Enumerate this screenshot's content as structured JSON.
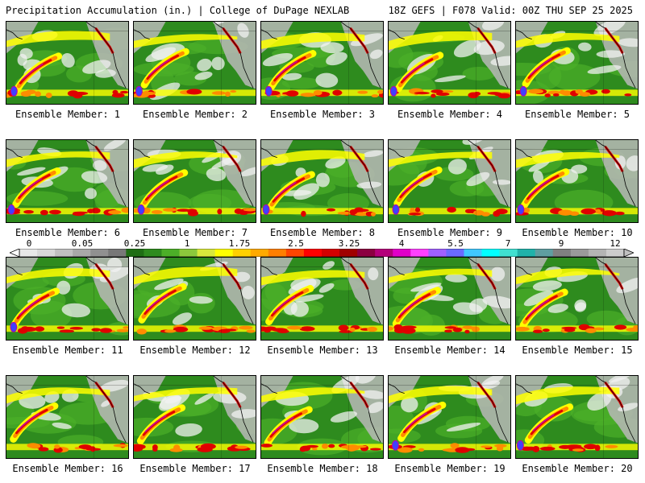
{
  "header": {
    "title": "Precipitation Accumulation (in.) | College of DuPage NEXLAB",
    "run_info": "18Z GEFS | F078 Valid: 00Z THU SEP 25 2025"
  },
  "members": [
    {
      "label": "Ensemble Member: 1"
    },
    {
      "label": "Ensemble Member: 2"
    },
    {
      "label": "Ensemble Member: 3"
    },
    {
      "label": "Ensemble Member: 4"
    },
    {
      "label": "Ensemble Member: 5"
    },
    {
      "label": "Ensemble Member: 6"
    },
    {
      "label": "Ensemble Member: 7"
    },
    {
      "label": "Ensemble Member: 8"
    },
    {
      "label": "Ensemble Member: 9"
    },
    {
      "label": "Ensemble Member: 10"
    },
    {
      "label": "Ensemble Member: 11"
    },
    {
      "label": "Ensemble Member: 12"
    },
    {
      "label": "Ensemble Member: 13"
    },
    {
      "label": "Ensemble Member: 14"
    },
    {
      "label": "Ensemble Member: 15"
    },
    {
      "label": "Ensemble Member: 16"
    },
    {
      "label": "Ensemble Member: 17"
    },
    {
      "label": "Ensemble Member: 18"
    },
    {
      "label": "Ensemble Member: 19"
    },
    {
      "label": "Ensemble Member: 20"
    }
  ],
  "colorbar": {
    "tick_labels": [
      "0",
      "0.05",
      "0.25",
      "1",
      "1.75",
      "2.5",
      "3.25",
      "4",
      "5.5",
      "7",
      "9",
      "12"
    ],
    "colors": [
      "#e8e8e8",
      "#d8d8d8",
      "#c0c0c0",
      "#a8a8a8",
      "#909090",
      "#787878",
      "#1f6e14",
      "#2e8b1e",
      "#4caf28",
      "#8bc83c",
      "#d8e83c",
      "#ffff00",
      "#ffd000",
      "#ffaa00",
      "#ff7f00",
      "#ff4500",
      "#ff0000",
      "#d40000",
      "#a00000",
      "#8b0040",
      "#b4007a",
      "#e000c8",
      "#ff40ff",
      "#a060ff",
      "#6a6aff",
      "#40c8ff",
      "#00ffff",
      "#40e0d0",
      "#20b2aa",
      "#5f9ea0",
      "#808080",
      "#9a9a9a",
      "#b4b4b4",
      "#cccccc"
    ]
  },
  "map_colors": {
    "ocean_green": "#2e8b1e",
    "light_green": "#4caf28",
    "yellow": "#ffff00",
    "orange": "#ff8c00",
    "red": "#e00000",
    "magenta": "#c000a0",
    "blue": "#4040ff",
    "cloud_white": "#f2f2f2",
    "cloud_gray": "#b8b8b8",
    "coastline": "#000000"
  }
}
